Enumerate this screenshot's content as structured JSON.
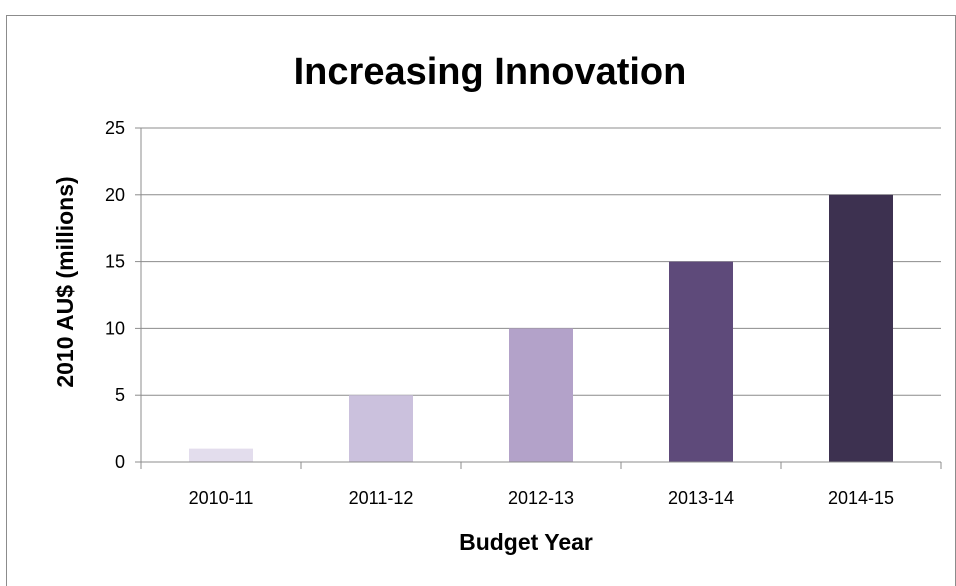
{
  "chart_data": {
    "type": "bar",
    "title": "Increasing Innovation",
    "xlabel": "Budget Year",
    "ylabel": "2010 AU$ (millions)",
    "categories": [
      "2010-11",
      "2011-12",
      "2012-13",
      "2013-14",
      "2014-15"
    ],
    "values": [
      1,
      5,
      10,
      15,
      20
    ],
    "ylim": [
      0,
      25
    ],
    "yticks": [
      "0",
      "5",
      "10",
      "15",
      "20",
      "25"
    ],
    "grid": true,
    "legend": "none",
    "bar_colors": [
      "#e3dded",
      "#cbc1dd",
      "#b3a2c9",
      "#5e4a7a",
      "#3d3150"
    ]
  }
}
